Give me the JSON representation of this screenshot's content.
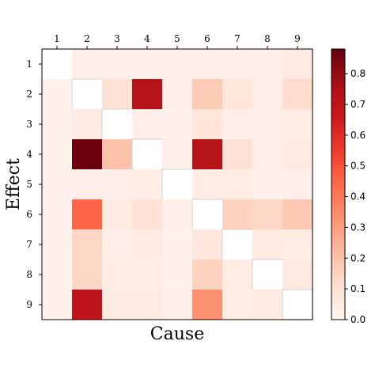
{
  "chart_data": {
    "type": "heatmap",
    "title": "",
    "xlabel": "Cause",
    "ylabel": "Effect",
    "x_categories": [
      "1",
      "2",
      "3",
      "4",
      "5",
      "6",
      "7",
      "8",
      "9"
    ],
    "y_categories": [
      "1",
      "2",
      "3",
      "4",
      "5",
      "6",
      "7",
      "8",
      "9"
    ],
    "x_tick_position": "top",
    "values": [
      [
        null,
        0.03,
        0.03,
        0.03,
        0.03,
        0.03,
        0.03,
        0.03,
        0.06
      ],
      [
        0.02,
        null,
        0.1,
        0.72,
        0.03,
        0.17,
        0.08,
        0.03,
        0.12
      ],
      [
        0.02,
        0.05,
        null,
        0.03,
        0.02,
        0.08,
        0.03,
        0.03,
        0.04
      ],
      [
        0.02,
        0.87,
        0.2,
        null,
        0.03,
        0.72,
        0.1,
        0.03,
        0.06
      ],
      [
        0.02,
        0.03,
        0.03,
        0.04,
        null,
        0.04,
        0.04,
        0.02,
        0.03
      ],
      [
        0.02,
        0.45,
        0.05,
        0.1,
        0.03,
        null,
        0.15,
        0.13,
        0.18
      ],
      [
        0.02,
        0.14,
        0.03,
        0.06,
        0.02,
        0.07,
        null,
        0.05,
        0.04
      ],
      [
        0.02,
        0.14,
        0.04,
        0.04,
        0.02,
        0.15,
        0.04,
        null,
        0.06
      ],
      [
        0.02,
        0.7,
        0.05,
        0.06,
        0.03,
        0.33,
        0.04,
        0.05,
        null
      ]
    ],
    "colorbar": {
      "colormap": "Reds",
      "min": 0.0,
      "max": 0.88,
      "ticks": [
        0.0,
        0.1,
        0.2,
        0.3,
        0.4,
        0.5,
        0.6,
        0.7,
        0.8
      ],
      "tick_labels": [
        "0.0",
        "0.1",
        "0.2",
        "0.3",
        "0.4",
        "0.5",
        "0.6",
        "0.7",
        "0.8"
      ]
    }
  }
}
